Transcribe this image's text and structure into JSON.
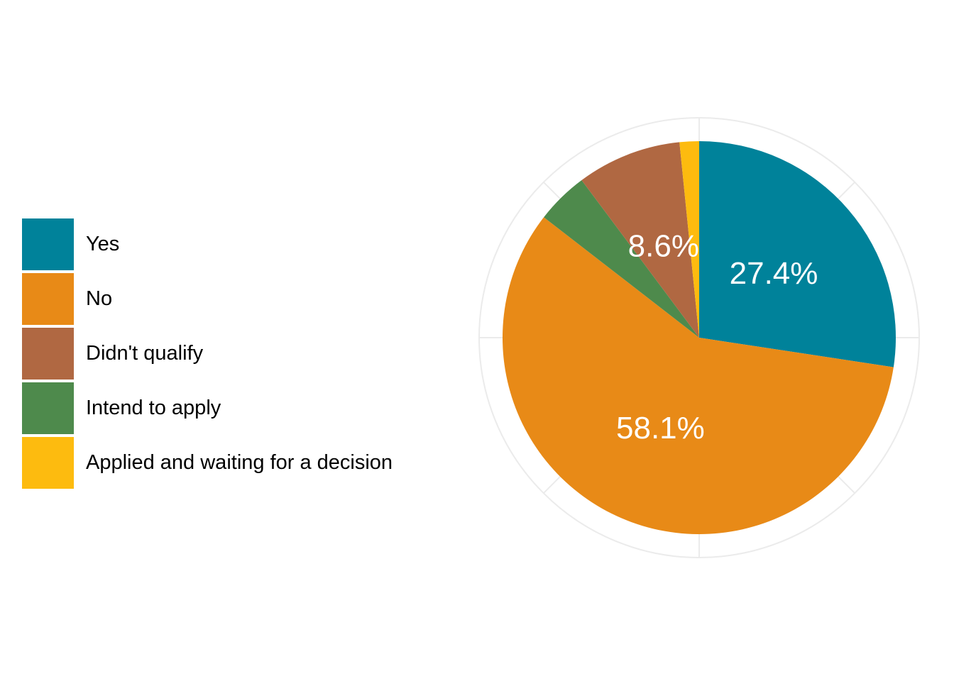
{
  "chart_data": {
    "type": "pie",
    "title": "",
    "start": "top",
    "direction": "clockwise",
    "grid": true,
    "legend_position": "left",
    "slices": [
      {
        "label": "Yes",
        "value": 27.4,
        "display": "27.4%",
        "color": "#00829A",
        "show_label": true
      },
      {
        "label": "No",
        "value": 58.1,
        "display": "58.1%",
        "color": "#E88A17",
        "show_label": true
      },
      {
        "label": "Intend to apply",
        "value": 4.3,
        "display": "",
        "color": "#4E8A4C",
        "show_label": false
      },
      {
        "label": "Didn't qualify",
        "value": 8.6,
        "display": "8.6%",
        "color": "#B06842",
        "show_label": true
      },
      {
        "label": "Applied and waiting for a decision",
        "value": 1.6,
        "display": "",
        "color": "#FDBB0F",
        "show_label": false
      }
    ],
    "legend": [
      {
        "label": "Yes",
        "color": "#00829A"
      },
      {
        "label": "No",
        "color": "#E88A17"
      },
      {
        "label": "Didn't qualify",
        "color": "#B06842"
      },
      {
        "label": "Intend to apply",
        "color": "#4E8A4C"
      },
      {
        "label": "Applied and waiting for a decision",
        "color": "#FDBB0F"
      }
    ]
  }
}
